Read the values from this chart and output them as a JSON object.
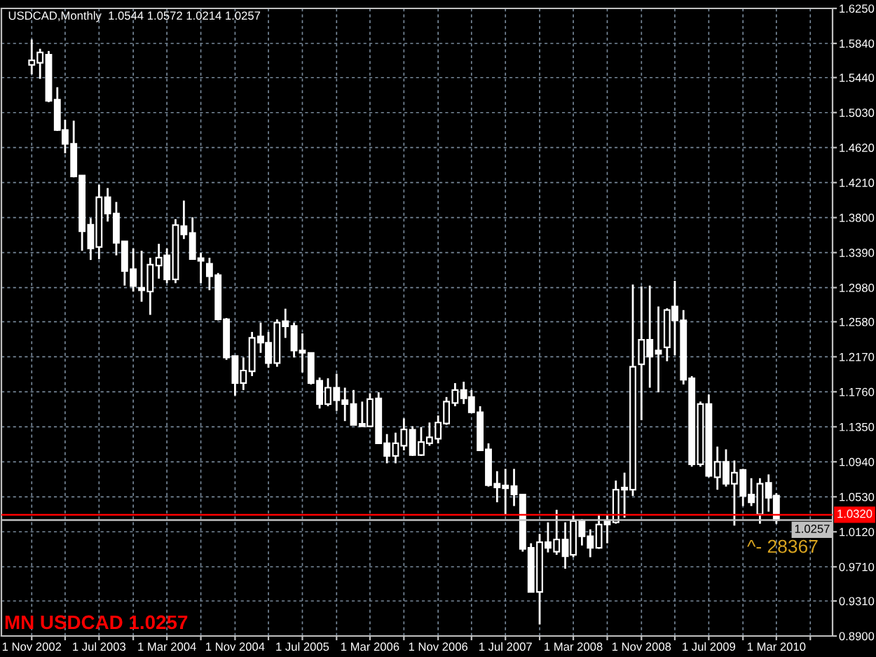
{
  "chart_data": {
    "type": "candlestick",
    "title": "USDCAD,Monthly  1.0544 1.0572 1.0214 1.0257",
    "annotations": [
      "MN USDCAD 1.0257",
      "^- 28367"
    ],
    "x": [
      "2002-11",
      "2002-12",
      "2003-01",
      "2003-02",
      "2003-03",
      "2003-04",
      "2003-05",
      "2003-06",
      "2003-07",
      "2003-08",
      "2003-09",
      "2003-10",
      "2003-11",
      "2003-12",
      "2004-01",
      "2004-02",
      "2004-03",
      "2004-04",
      "2004-05",
      "2004-06",
      "2004-07",
      "2004-08",
      "2004-09",
      "2004-10",
      "2004-11",
      "2004-12",
      "2005-01",
      "2005-02",
      "2005-03",
      "2005-04",
      "2005-05",
      "2005-06",
      "2005-07",
      "2005-08",
      "2005-09",
      "2005-10",
      "2005-11",
      "2005-12",
      "2006-01",
      "2006-02",
      "2006-03",
      "2006-04",
      "2006-05",
      "2006-06",
      "2006-07",
      "2006-08",
      "2006-09",
      "2006-10",
      "2006-11",
      "2006-12",
      "2007-01",
      "2007-02",
      "2007-03",
      "2007-04",
      "2007-05",
      "2007-06",
      "2007-07",
      "2007-08",
      "2007-09",
      "2007-10",
      "2007-11",
      "2007-12",
      "2008-01",
      "2008-02",
      "2008-03",
      "2008-04",
      "2008-05",
      "2008-06",
      "2008-07",
      "2008-08",
      "2008-09",
      "2008-10",
      "2008-11",
      "2008-12",
      "2009-01",
      "2009-02",
      "2009-03",
      "2009-04",
      "2009-05",
      "2009-06",
      "2009-07",
      "2009-08",
      "2009-09",
      "2009-10",
      "2009-11",
      "2009-12",
      "2010-01",
      "2010-02",
      "2010-03"
    ],
    "ohlc": [
      [
        1.5588,
        1.5886,
        1.5478,
        1.5642
      ],
      [
        1.5614,
        1.5777,
        1.5425,
        1.5735
      ],
      [
        1.5707,
        1.5751,
        1.5152,
        1.5169
      ],
      [
        1.518,
        1.5327,
        1.4815,
        1.4826
      ],
      [
        1.4826,
        1.4945,
        1.4554,
        1.4663
      ],
      [
        1.4663,
        1.4935,
        1.4271,
        1.4283
      ],
      [
        1.4293,
        1.4293,
        1.3412,
        1.364
      ],
      [
        1.3717,
        1.3793,
        1.3304,
        1.3439
      ],
      [
        1.3456,
        1.4185,
        1.3314,
        1.4038
      ],
      [
        1.4038,
        1.4146,
        1.3754,
        1.3847
      ],
      [
        1.3847,
        1.3983,
        1.3358,
        1.3505
      ],
      [
        1.3521,
        1.3521,
        1.3004,
        1.3174
      ],
      [
        1.3195,
        1.3439,
        1.2934,
        1.2999
      ],
      [
        1.2978,
        1.3412,
        1.2815,
        1.295
      ],
      [
        1.2934,
        1.333,
        1.2661,
        1.3249
      ],
      [
        1.3239,
        1.3493,
        1.3085,
        1.333
      ],
      [
        1.3358,
        1.3439,
        1.3032,
        1.3076
      ],
      [
        1.3076,
        1.3782,
        1.3032,
        1.3712
      ],
      [
        1.37,
        1.3999,
        1.3549,
        1.3603
      ],
      [
        1.3619,
        1.3803,
        1.3314,
        1.3314
      ],
      [
        1.3325,
        1.3386,
        1.3032,
        1.3293
      ],
      [
        1.326,
        1.333,
        1.295,
        1.3113
      ],
      [
        1.3125,
        1.3151,
        1.2596,
        1.2608
      ],
      [
        1.2608,
        1.2624,
        1.2134,
        1.2162
      ],
      [
        1.2179,
        1.2179,
        1.1715,
        1.1862
      ],
      [
        1.1862,
        1.2162,
        1.1781,
        1.2009
      ],
      [
        1.1999,
        1.2461,
        1.1944,
        1.2391
      ],
      [
        1.2407,
        1.257,
        1.2216,
        1.2335
      ],
      [
        1.2335,
        1.2461,
        1.2042,
        1.2097
      ],
      [
        1.2097,
        1.2608,
        1.2053,
        1.257
      ],
      [
        1.2586,
        1.2733,
        1.2391,
        1.2526
      ],
      [
        1.2531,
        1.257,
        1.2162,
        1.2244
      ],
      [
        1.2244,
        1.2444,
        1.1988,
        1.2216
      ],
      [
        1.2216,
        1.2216,
        1.1846,
        1.1862
      ],
      [
        1.189,
        1.1927,
        1.1564,
        1.1617
      ],
      [
        1.1617,
        1.1918,
        1.1591,
        1.1808
      ],
      [
        1.1808,
        1.1971,
        1.1536,
        1.1661
      ],
      [
        1.1661,
        1.1808,
        1.1417,
        1.1617
      ],
      [
        1.1617,
        1.1781,
        1.1373,
        1.1373
      ],
      [
        1.1384,
        1.1645,
        1.1352,
        1.1356
      ],
      [
        1.1356,
        1.1743,
        1.1352,
        1.1673
      ],
      [
        1.1683,
        1.1754,
        1.1156,
        1.1156
      ],
      [
        1.1156,
        1.1265,
        1.0923,
        1.1009
      ],
      [
        1.1009,
        1.1281,
        1.0923,
        1.1156
      ],
      [
        1.1128,
        1.1449,
        1.1074,
        1.1319
      ],
      [
        1.1314,
        1.1356,
        1.1009,
        1.102
      ],
      [
        1.102,
        1.1347,
        1.1009,
        1.1172
      ],
      [
        1.1156,
        1.14,
        1.1128,
        1.1226
      ],
      [
        1.121,
        1.1482,
        1.1156,
        1.14
      ],
      [
        1.1389,
        1.1699,
        1.1373,
        1.1645
      ],
      [
        1.1629,
        1.1862,
        1.1591,
        1.1781
      ],
      [
        1.1781,
        1.1878,
        1.1617,
        1.1683
      ],
      [
        1.1699,
        1.1781,
        1.151,
        1.152
      ],
      [
        1.152,
        1.1591,
        1.1074,
        1.1074
      ],
      [
        1.1086,
        1.1156,
        1.065,
        1.0666
      ],
      [
        1.0683,
        1.083,
        1.0466,
        1.0639
      ],
      [
        1.0662,
        1.0857,
        1.0324,
        1.0629
      ],
      [
        1.0655,
        1.0857,
        1.0422,
        1.0557
      ],
      [
        1.0557,
        1.0557,
        0.9888,
        0.9921
      ],
      [
        0.9932,
        0.9986,
        0.9415,
        0.9415
      ],
      [
        0.9415,
        1.0095,
        0.9035,
        0.9998
      ],
      [
        0.9998,
        1.0231,
        0.9879,
        0.9932
      ],
      [
        0.9888,
        1.0378,
        0.9851,
        1.003
      ],
      [
        1.003,
        1.0231,
        0.9688,
        0.9834
      ],
      [
        0.9851,
        1.0312,
        0.9823,
        1.0247
      ],
      [
        1.0247,
        1.027,
        0.996,
        1.0068
      ],
      [
        1.0068,
        1.0149,
        0.9823,
        0.9932
      ],
      [
        0.9932,
        1.0312,
        0.9921,
        1.0205
      ],
      [
        1.0247,
        1.0312,
        0.9986,
        1.0205
      ],
      [
        1.0231,
        1.072,
        1.0215,
        1.0613
      ],
      [
        1.0639,
        1.0813,
        1.0286,
        1.0613
      ],
      [
        1.0613,
        1.3015,
        1.0541,
        1.2053
      ],
      [
        1.2081,
        1.2994,
        1.1428,
        1.2368
      ],
      [
        1.2368,
        1.3004,
        1.1808,
        1.2172
      ],
      [
        1.2244,
        1.2759,
        1.1754,
        1.2205
      ],
      [
        1.2281,
        1.2738,
        1.2118,
        1.2717
      ],
      [
        1.2759,
        1.3059,
        1.2188,
        1.2596
      ],
      [
        1.2596,
        1.2717,
        1.1846,
        1.1901
      ],
      [
        1.1918,
        1.1944,
        1.0883,
        1.0911
      ],
      [
        1.0911,
        1.1645,
        1.0883,
        1.1617
      ],
      [
        1.1617,
        1.1727,
        1.0759,
        1.0776
      ],
      [
        1.0759,
        1.1118,
        1.0613,
        1.0939
      ],
      [
        1.0939,
        1.1086,
        1.065,
        1.0683
      ],
      [
        1.0683,
        1.0955,
        1.0193,
        1.0813
      ],
      [
        1.0846,
        1.0857,
        1.0422,
        1.0541
      ],
      [
        1.0557,
        1.0748,
        1.0422,
        1.0466
      ],
      [
        1.0324,
        1.0748,
        1.0215,
        1.0683
      ],
      [
        1.0694,
        1.0792,
        1.0356,
        1.052
      ],
      [
        1.0544,
        1.0572,
        1.0214,
        1.0257
      ]
    ],
    "color": "#ffffff",
    "colors": [
      "#000000",
      "#000000",
      "#ffffff",
      "#ffffff",
      "#ffffff",
      "#ffffff",
      "#ffffff",
      "#ffffff",
      "#000000",
      "#ffffff",
      "#ffffff",
      "#ffffff",
      "#ffffff",
      "#ffffff",
      "#000000",
      "#000000",
      "#ffffff",
      "#000000",
      "#ffffff",
      "#ffffff",
      "#ffffff",
      "#ffffff",
      "#ffffff",
      "#ffffff",
      "#ffffff",
      "#000000",
      "#000000",
      "#ffffff",
      "#ffffff",
      "#000000",
      "#ffffff",
      "#ffffff",
      "#ffffff",
      "#ffffff",
      "#ffffff",
      "#000000",
      "#ffffff",
      "#ffffff",
      "#ffffff",
      "#ffffff",
      "#000000",
      "#ffffff",
      "#ffffff",
      "#000000",
      "#000000",
      "#ffffff",
      "#000000",
      "#000000",
      "#000000",
      "#000000",
      "#000000",
      "#ffffff",
      "#ffffff",
      "#ffffff",
      "#ffffff",
      "#ffffff",
      "#ffffff",
      "#ffffff",
      "#ffffff",
      "#ffffff",
      "#000000",
      "#ffffff",
      "#000000",
      "#ffffff",
      "#000000",
      "#ffffff",
      "#ffffff",
      "#000000",
      "#ffffff",
      "#000000",
      "#ffffff",
      "#000000",
      "#000000",
      "#ffffff",
      "#ffffff",
      "#000000",
      "#ffffff",
      "#ffffff",
      "#ffffff",
      "#000000",
      "#ffffff",
      "#000000",
      "#ffffff",
      "#000000",
      "#ffffff",
      "#ffffff",
      "#000000",
      "#ffffff",
      "#ffffff"
    ],
    "xlim": [
      "2002-07-15",
      "2010-09-19"
    ],
    "ylim": [
      0.89,
      1.625
    ],
    "xticks": [
      {
        "value": "2002-11",
        "label": "1 Nov 2002"
      },
      {
        "value": "2003-03",
        "label": null
      },
      {
        "value": "2003-07",
        "label": "1 Jul 2003"
      },
      {
        "value": "2003-11",
        "label": null
      },
      {
        "value": "2004-03",
        "label": "1 Mar 2004"
      },
      {
        "value": "2004-07",
        "label": null
      },
      {
        "value": "2004-11",
        "label": "1 Nov 2004"
      },
      {
        "value": "2005-03",
        "label": null
      },
      {
        "value": "2005-07",
        "label": "1 Jul 2005"
      },
      {
        "value": "2005-11",
        "label": null
      },
      {
        "value": "2006-03",
        "label": "1 Mar 2006"
      },
      {
        "value": "2006-07",
        "label": null
      },
      {
        "value": "2006-11",
        "label": "1 Nov 2006"
      },
      {
        "value": "2007-03",
        "label": null
      },
      {
        "value": "2007-07",
        "label": "1 Jul 2007"
      },
      {
        "value": "2007-11",
        "label": null
      },
      {
        "value": "2008-03",
        "label": "1 Mar 2008"
      },
      {
        "value": "2008-07",
        "label": null
      },
      {
        "value": "2008-11",
        "label": "1 Nov 2008"
      },
      {
        "value": "2009-03",
        "label": null
      },
      {
        "value": "2009-07",
        "label": "1 Jul 2009"
      },
      {
        "value": "2009-11",
        "label": null
      },
      {
        "value": "2010-03",
        "label": "1 Mar 2010"
      },
      {
        "value": "2010-07",
        "label": null
      }
    ],
    "yticks": [
      {
        "value": 1.625,
        "label": "1.6250"
      },
      {
        "value": 1.584,
        "label": "1.5840"
      },
      {
        "value": 1.544,
        "label": "1.5440"
      },
      {
        "value": 1.503,
        "label": "1.5030"
      },
      {
        "value": 1.462,
        "label": "1.4620"
      },
      {
        "value": 1.421,
        "label": "1.4210"
      },
      {
        "value": 1.38,
        "label": "1.3800"
      },
      {
        "value": 1.339,
        "label": "1.3390"
      },
      {
        "value": 1.298,
        "label": "1.2980"
      },
      {
        "value": 1.258,
        "label": "1.2580"
      },
      {
        "value": 1.217,
        "label": "1.2170"
      },
      {
        "value": 1.176,
        "label": "1.1760"
      },
      {
        "value": 1.135,
        "label": "1.1350"
      },
      {
        "value": 1.094,
        "label": "1.0940"
      },
      {
        "value": 1.053,
        "label": "1.0530"
      },
      {
        "value": 1.012,
        "label": "1.0120"
      },
      {
        "value": 0.971,
        "label": "0.9710"
      },
      {
        "value": 0.931,
        "label": "0.9310"
      },
      {
        "value": 0.89,
        "label": "0.8900"
      }
    ],
    "grid": true,
    "ref_lines": [
      {
        "axis": "y",
        "value": 1.032,
        "label": "1.0320",
        "color": "#ff0000"
      },
      {
        "axis": "y",
        "value": 1.0257,
        "label": "1.0257",
        "color": "#c0c0c0"
      }
    ]
  }
}
